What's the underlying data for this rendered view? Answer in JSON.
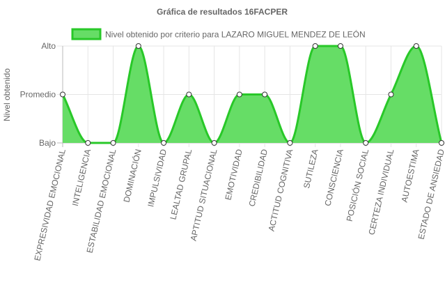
{
  "chart_data": {
    "type": "area",
    "title": "Gráfica de resultados 16FACPER",
    "xlabel": "",
    "ylabel": "Nivel obtenido",
    "y_levels": [
      "Bajo",
      "Promedio",
      "Alto"
    ],
    "categories": [
      "EXPRESIVIDAD EMOCIONAL",
      "INTELIGENCIA",
      "ESTABILIDAD EMOCIONAL",
      "DOMINACIÓN",
      "IMPULSIVIDAD",
      "LEALTAD GRUPAL",
      "APTITUD SITUACIONAL",
      "EMOTIVIDAD",
      "CREDIBILIDAD",
      "ACTITUD COGNITIVA",
      "SUTILEZA",
      "CONSCIENCIA",
      "POSICIÓN SOCIAL",
      "CERTEZA INDIVIDUAL",
      "AUTOESTIMA",
      "ESTADO DE ANSIEDAD"
    ],
    "series": [
      {
        "name": "Nivel obtenido por criterio para LAZARO MIGUEL MENDEZ DE LEÓN",
        "values": [
          "Promedio",
          "Bajo",
          "Bajo",
          "Alto",
          "Bajo",
          "Promedio",
          "Bajo",
          "Promedio",
          "Promedio",
          "Bajo",
          "Alto",
          "Alto",
          "Bajo",
          "Promedio",
          "Alto",
          "Bajo"
        ],
        "color": "#28c828",
        "fill": "#66dd66"
      }
    ],
    "grid": true,
    "legend_position": "top"
  }
}
